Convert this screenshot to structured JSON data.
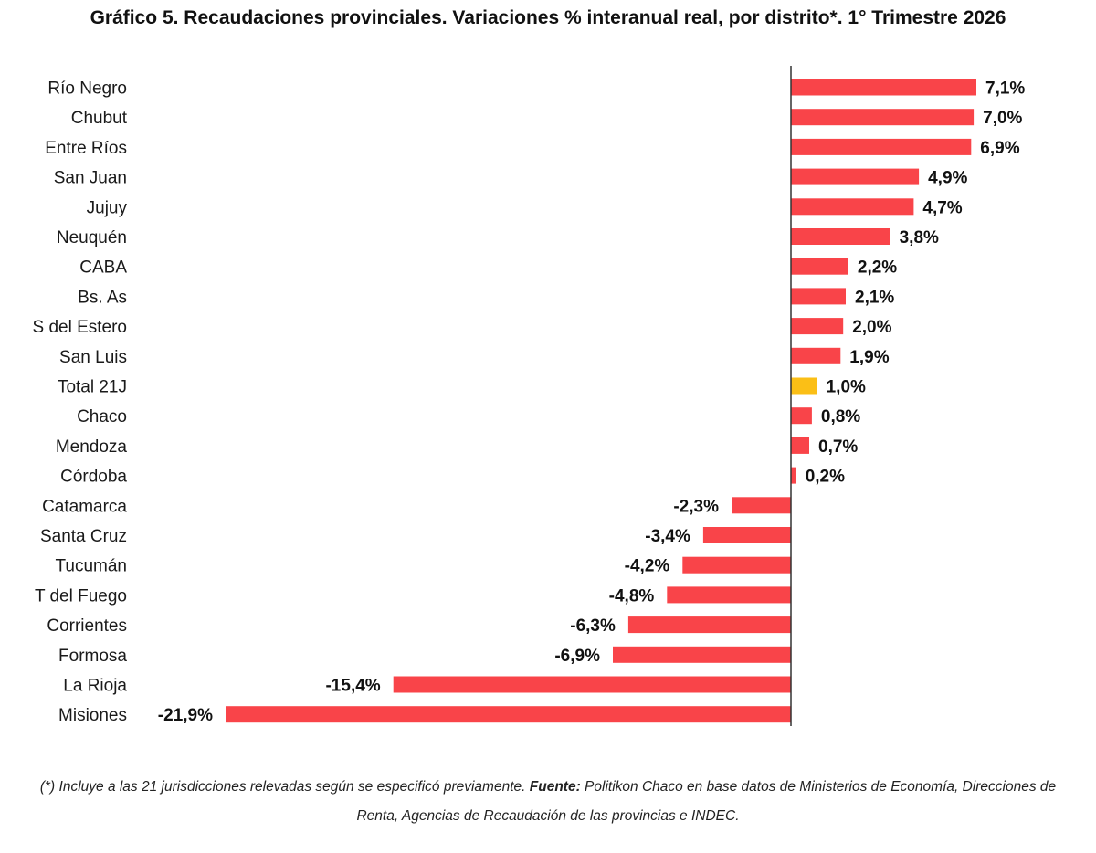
{
  "chart_data": {
    "type": "bar",
    "orientation": "horizontal",
    "title": "Gráfico 5. Recaudaciones provinciales. Variaciones % interanual real, por distrito*. 1° Trimestre 2026",
    "categories": [
      "Río Negro",
      "Chubut",
      "Entre Ríos",
      "San Juan",
      "Jujuy",
      "Neuquén",
      "CABA",
      "Bs. As",
      "S del Estero",
      "San Luis",
      "Total 21J",
      "Chaco",
      "Mendoza",
      "Córdoba",
      "Catamarca",
      "Santa Cruz",
      "Tucumán",
      "T del Fuego",
      "Corrientes",
      "Formosa",
      "La Rioja",
      "Misiones"
    ],
    "values": [
      7.1,
      7.0,
      6.9,
      4.9,
      4.7,
      3.8,
      2.2,
      2.1,
      2.0,
      1.9,
      1.0,
      0.8,
      0.7,
      0.2,
      -2.3,
      -3.4,
      -4.2,
      -4.8,
      -6.3,
      -6.9,
      -15.4,
      -21.9
    ],
    "value_labels": [
      "7,1%",
      "7,0%",
      "6,9%",
      "4,9%",
      "4,7%",
      "3,8%",
      "2,2%",
      "2,1%",
      "2,0%",
      "1,9%",
      "1,0%",
      "0,8%",
      "0,7%",
      "0,2%",
      "-2,3%",
      "-3,4%",
      "-4,2%",
      "-4,8%",
      "-6,3%",
      "-6,9%",
      "-15,4%",
      "-21,9%"
    ],
    "highlight_category": "Total 21J",
    "colors": {
      "bar": "#f94449",
      "highlight": "#fbbf16",
      "axis": "#333333"
    },
    "xlim": [
      -21.9,
      7.1
    ],
    "grid": false,
    "legend": "none"
  },
  "footnote": {
    "note": "(*) Incluye a las 21 jurisdicciones relevadas según se especificó previamente.",
    "source_label": "Fuente:",
    "source_text": "Politikon Chaco en base datos de Ministerios de Economía, Direcciones de Renta, Agencias de Recaudación de las provincias e INDEC."
  }
}
